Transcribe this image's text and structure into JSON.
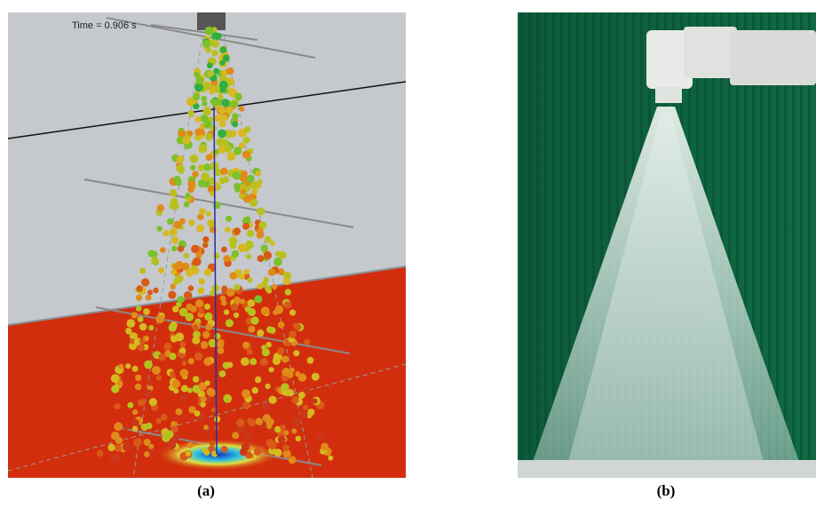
{
  "panels": [
    {
      "overlay_text": "Time = 0.906 s",
      "caption": "(a)"
    },
    {
      "caption": "(b)"
    }
  ]
}
